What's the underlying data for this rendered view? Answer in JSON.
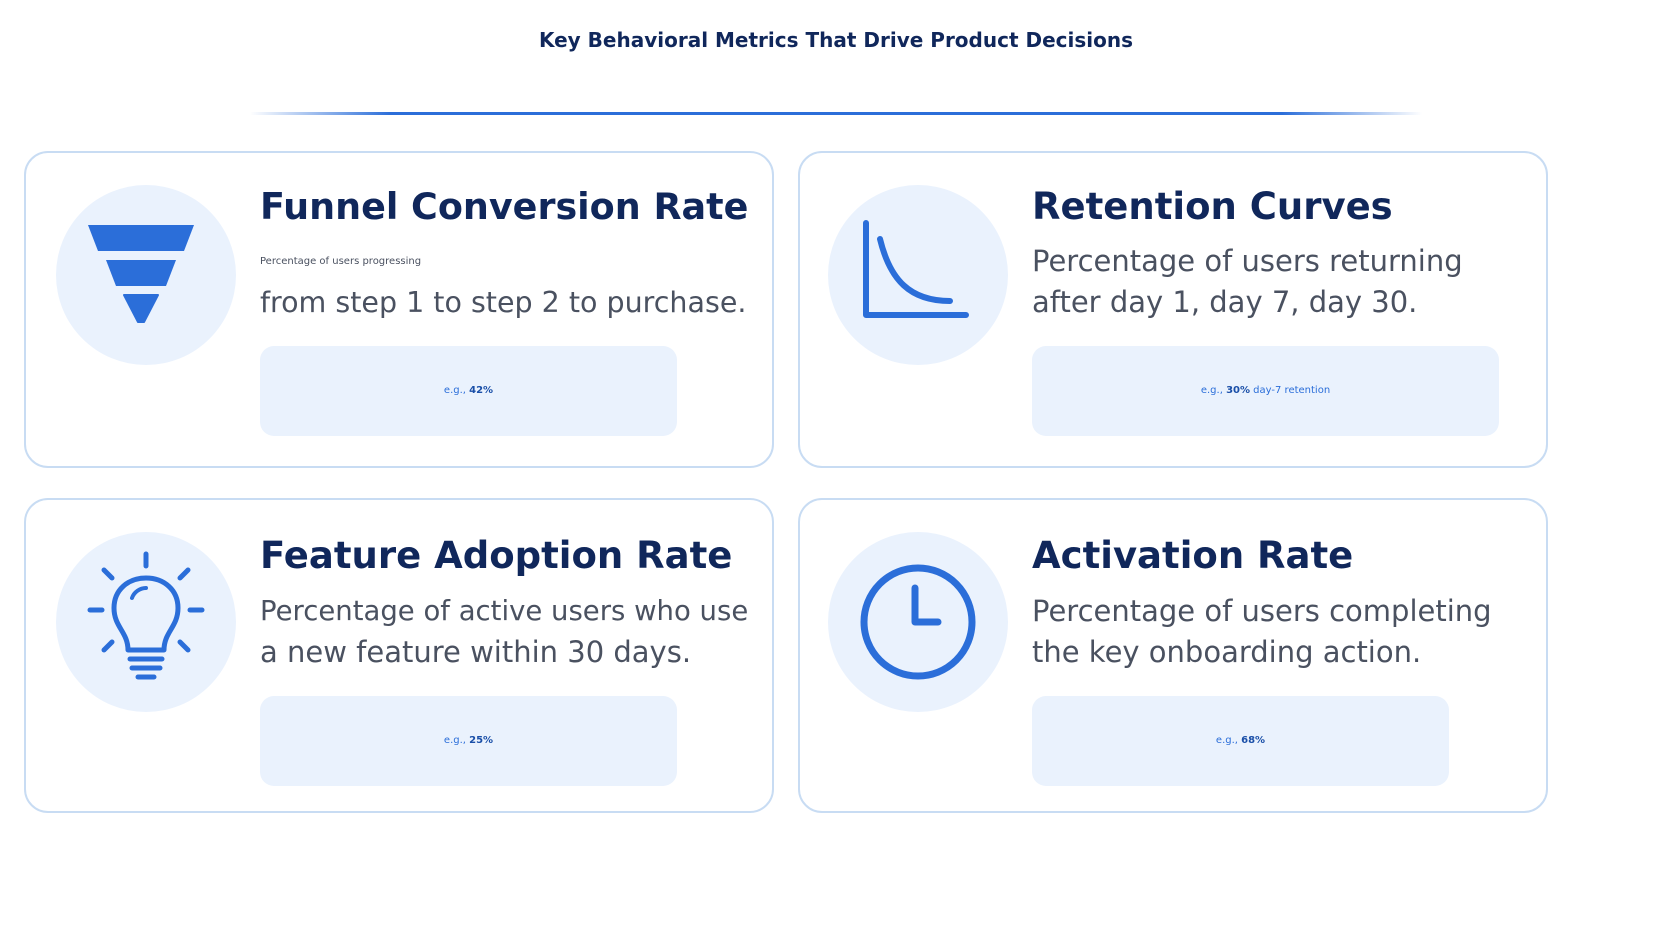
{
  "page": {
    "title": "Key Behavioral Metrics That Drive Product Decisions"
  },
  "colors": {
    "title": "#10275b",
    "accent": "#2b6ed9",
    "accent_dark": "#1a4fa8",
    "icon_bg": "#eaf2fd",
    "card_border": "#c8dcf3",
    "body_text": "#4a5160"
  },
  "cards": [
    {
      "icon": "funnel-icon",
      "title": "Funnel Conversion Rate",
      "desc_line1": "Percentage of users progressing",
      "desc_line2": "from step 1 to step 2 to purchase.",
      "example_prefix": "e.g., ",
      "example_value": "42%",
      "example_suffix": ""
    },
    {
      "icon": "retention-curve-icon",
      "title": "Retention Curves",
      "desc_line1": "Percentage of users returning",
      "desc_line2": "after day 1, day 7, day 30.",
      "example_prefix": "e.g., ",
      "example_value": "30%",
      "example_suffix": " day-7 retention"
    },
    {
      "icon": "lightbulb-icon",
      "title": "Feature Adoption Rate",
      "desc_line1": "Percentage of active users who use",
      "desc_line2": "a new feature within 30 days.",
      "example_prefix": "e.g., ",
      "example_value": "25%",
      "example_suffix": ""
    },
    {
      "icon": "clock-icon",
      "title": "Activation Rate",
      "desc_line1": "Percentage of users completing",
      "desc_line2": "the key onboarding action.",
      "example_prefix": "e.g., ",
      "example_value": "68%",
      "example_suffix": ""
    }
  ]
}
